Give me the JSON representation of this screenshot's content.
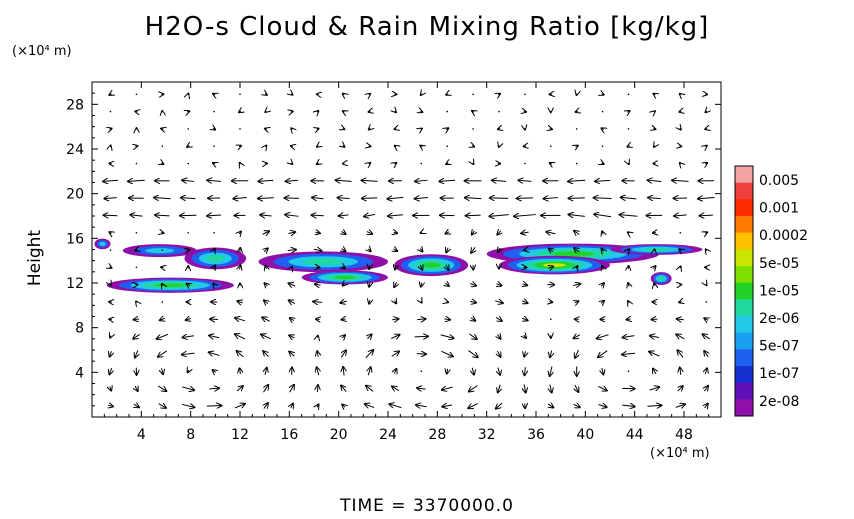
{
  "chart_data": {
    "type": "heatmap",
    "title": "H2O-s Cloud & Rain Mixing Ratio [kg/kg]",
    "ylabel": "Height",
    "y_unit": "(×10⁴ m)",
    "x_unit": "(×10⁴ m)",
    "xlim": [
      0,
      51
    ],
    "ylim": [
      0,
      30
    ],
    "x_ticks": [
      4,
      8,
      12,
      16,
      20,
      24,
      28,
      32,
      36,
      40,
      44,
      48
    ],
    "y_ticks": [
      4,
      8,
      12,
      16,
      20,
      24,
      28
    ],
    "colorbar": {
      "labels": [
        "0.005",
        "0.001",
        "0.0002",
        "5e-05",
        "1e-05",
        "2e-06",
        "5e-07",
        "1e-07",
        "2e-08"
      ],
      "colors": [
        "#f4a3a3",
        "#f04040",
        "#ff2a00",
        "#ff7a00",
        "#ffc000",
        "#c8e600",
        "#7ee000",
        "#22d22a",
        "#20d8a0",
        "#22c8e6",
        "#1aa0f0",
        "#2060f0",
        "#1830d0",
        "#6010b8",
        "#8e10a8"
      ]
    },
    "cloud_bands": [
      {
        "x0": 0.2,
        "x1": 1.5,
        "y": 15.5,
        "h": 0.6,
        "level": 2
      },
      {
        "x0": 2.5,
        "x1": 8.5,
        "y": 14.9,
        "h": 0.8,
        "level": 2
      },
      {
        "x0": 7.5,
        "x1": 12.5,
        "y": 14.2,
        "h": 1.6,
        "level": 3
      },
      {
        "x0": 1.2,
        "x1": 11.5,
        "y": 11.8,
        "h": 1.0,
        "level": 4
      },
      {
        "x0": 13.5,
        "x1": 24.0,
        "y": 13.9,
        "h": 1.5,
        "level": 3
      },
      {
        "x0": 17.0,
        "x1": 24.0,
        "y": 12.5,
        "h": 0.9,
        "level": 4
      },
      {
        "x0": 24.5,
        "x1": 30.5,
        "y": 13.6,
        "h": 1.6,
        "level": 4
      },
      {
        "x0": 32.0,
        "x1": 46.0,
        "y": 14.6,
        "h": 1.5,
        "level": 4
      },
      {
        "x0": 33.0,
        "x1": 42.0,
        "y": 13.6,
        "h": 1.3,
        "level": 5
      },
      {
        "x0": 42.0,
        "x1": 49.5,
        "y": 15.0,
        "h": 0.6,
        "level": 3
      },
      {
        "x0": 45.3,
        "x1": 47.0,
        "y": 12.4,
        "h": 0.8,
        "level": 3
      }
    ],
    "time_label": "TIME = 3370000.0"
  }
}
